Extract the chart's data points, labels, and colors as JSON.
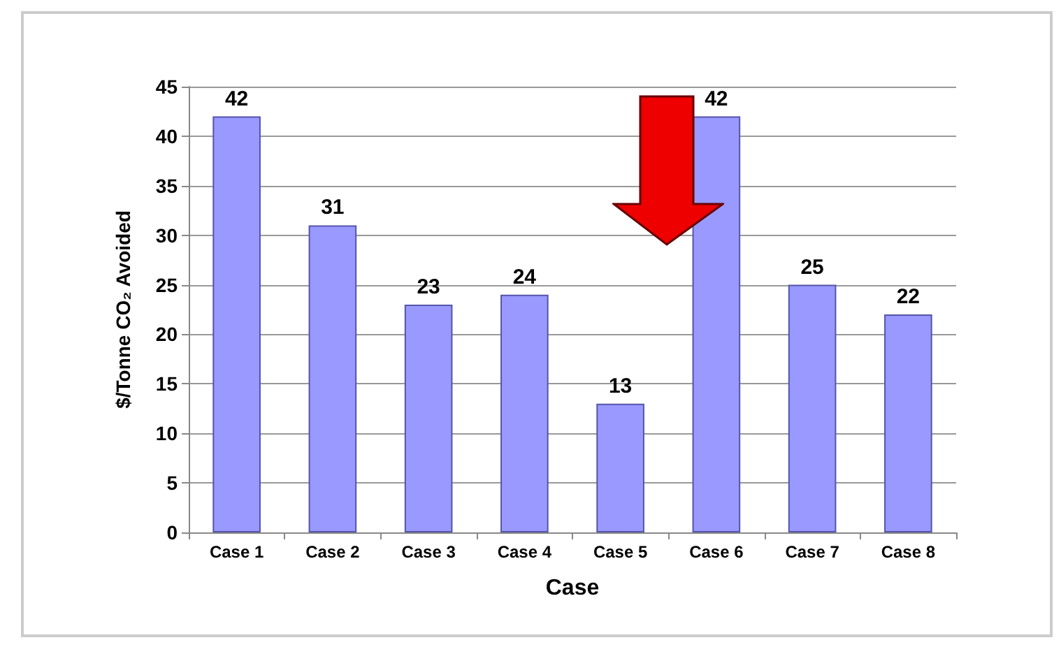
{
  "chart_data": {
    "type": "bar",
    "xlabel": "Case",
    "ylabel": "$/Tonne CO₂ Avoided",
    "categories": [
      "Case 1",
      "Case 2",
      "Case 3",
      "Case 4",
      "Case 5",
      "Case 6",
      "Case 7",
      "Case 8"
    ],
    "values": [
      42,
      31,
      23,
      24,
      13,
      42,
      25,
      22
    ],
    "color": "#9999ff",
    "ylim": [
      0,
      45
    ],
    "yticks": [
      0,
      5,
      10,
      15,
      20,
      25,
      30,
      35,
      40,
      45
    ],
    "grid": "y",
    "data_labels": true
  }
}
